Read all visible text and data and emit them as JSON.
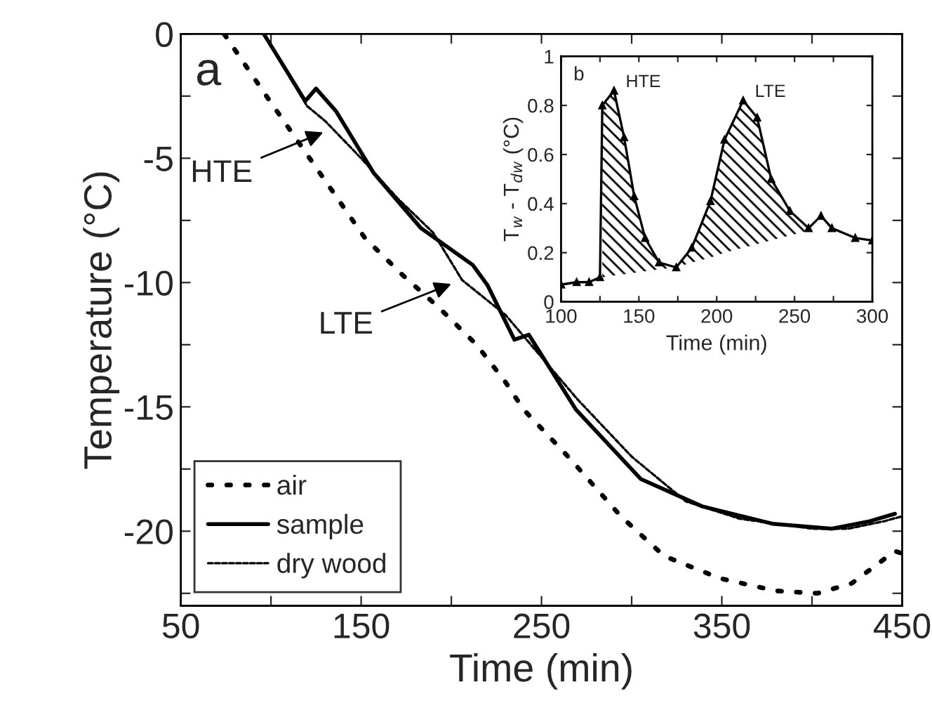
{
  "chart_data": [
    {
      "type": "line",
      "xlabel": "Time (min)",
      "ylabel": "Temperature (°C)",
      "xlim": [
        50,
        450
      ],
      "xticks": [
        50,
        {
          "value": 100,
          "label": null
        },
        150,
        {
          "value": 200,
          "label": null
        },
        250,
        {
          "value": 300,
          "label": null
        },
        350,
        {
          "value": 400,
          "label": null
        },
        450
      ],
      "ylim": [
        -23,
        0
      ],
      "yticks": [
        0,
        {
          "value": -2.5,
          "label": null
        },
        -5,
        {
          "value": -7.5,
          "label": null
        },
        -10,
        {
          "value": -12.5,
          "label": null
        },
        -15,
        {
          "value": -17.5,
          "label": null
        },
        -20,
        {
          "value": -22.5,
          "label": null
        }
      ],
      "legend": "bottom left",
      "series": [
        {
          "name": "air",
          "color": "#000000",
          "line_style": "dotted",
          "x": [
            74,
            97.5,
            109,
            131,
            152,
            173,
            193,
            214,
            230,
            240,
            266,
            294,
            318,
            349,
            380,
            403,
            422,
            446,
            450
          ],
          "values": [
            0,
            -2.5,
            -3.7,
            -6.0,
            -8.2,
            -9.7,
            -11.0,
            -12.5,
            -14.0,
            -15.1,
            -17.1,
            -19.4,
            -21.0,
            -21.9,
            -22.4,
            -22.5,
            -22.1,
            -20.8,
            -20.9
          ]
        },
        {
          "name": "sample",
          "color": "#000000",
          "line_style": "solid",
          "x": [
            96,
            119,
            125,
            136,
            157,
            183,
            212,
            220,
            235,
            243,
            269,
            305,
            339,
            378,
            411,
            432,
            446
          ],
          "values": [
            0,
            -2.7,
            -2.2,
            -3.1,
            -5.6,
            -7.8,
            -9.3,
            -10.1,
            -12.3,
            -12.1,
            -15.1,
            -17.9,
            -19.0,
            -19.7,
            -19.9,
            -19.6,
            -19.3
          ]
        },
        {
          "name": "dry wood",
          "color": "#000000",
          "line_style": "dashed",
          "x": [
            96,
            120,
            130,
            150,
            170,
            190,
            206,
            230,
            250,
            270,
            300,
            330,
            360,
            400,
            420,
            440,
            450
          ],
          "values": [
            0,
            -2.9,
            -3.5,
            -5.0,
            -6.6,
            -8.0,
            -9.9,
            -11.3,
            -13.0,
            -14.7,
            -17.0,
            -18.8,
            -19.5,
            -19.9,
            -19.9,
            -19.6,
            -19.4
          ]
        }
      ],
      "annotations": [
        "a",
        {
          "text": "HTE",
          "x": 131,
          "y": -3.9
        },
        {
          "text": "LTE",
          "x": 202,
          "y": -10.0
        }
      ]
    },
    {
      "type": "line",
      "xlabel": "Time (min)",
      "ylabel": "T$_{w}$ - T$_{dw}$ (°C)",
      "xlim": [
        100,
        300
      ],
      "xticks": [
        100,
        {
          "value": 125,
          "label": null
        },
        150,
        {
          "value": 175,
          "label": null
        },
        200,
        {
          "value": 225,
          "label": null
        },
        250,
        {
          "value": 275,
          "label": null
        },
        300
      ],
      "ylim": [
        0,
        1
      ],
      "yticks": [
        0,
        0.2,
        0.4,
        0.6,
        0.8,
        1
      ],
      "marker": "triangle",
      "series": [
        {
          "color": "#000000",
          "line_style": "solid",
          "x": [
            100,
            110,
            118,
            125,
            126.5,
            134,
            140.5,
            147,
            154,
            163,
            174,
            184,
            196,
            205,
            217,
            226,
            235,
            247,
            259,
            267,
            274,
            289,
            300
          ],
          "values": [
            0.07,
            0.08,
            0.08,
            0.1,
            0.8,
            0.86,
            0.67,
            0.43,
            0.26,
            0.16,
            0.14,
            0.22,
            0.41,
            0.66,
            0.82,
            0.75,
            0.5,
            0.37,
            0.3,
            0.35,
            0.3,
            0.26,
            0.25
          ],
          "upper": [
            null,
            null,
            null,
            null,
            0.8,
            0.86,
            0.67,
            0.43,
            0.26,
            0.16,
            0.14,
            0.22,
            0.41,
            0.66,
            0.82,
            0.75,
            0.5,
            0.37,
            0.3,
            null,
            null,
            null,
            null
          ],
          "lower": [
            null,
            null,
            null,
            null,
            0.1,
            0.107,
            0.112,
            0.118,
            0.124,
            0.132,
            0.14,
            0.16,
            0.18,
            0.2,
            0.22,
            0.235,
            0.25,
            0.27,
            0.29,
            null,
            null,
            null,
            null
          ]
        }
      ],
      "annotations": [
        "b",
        {
          "text": "HTE",
          "x": 134,
          "y": 0.86
        },
        {
          "text": "LTE",
          "x": 217,
          "y": 0.82
        }
      ]
    }
  ]
}
